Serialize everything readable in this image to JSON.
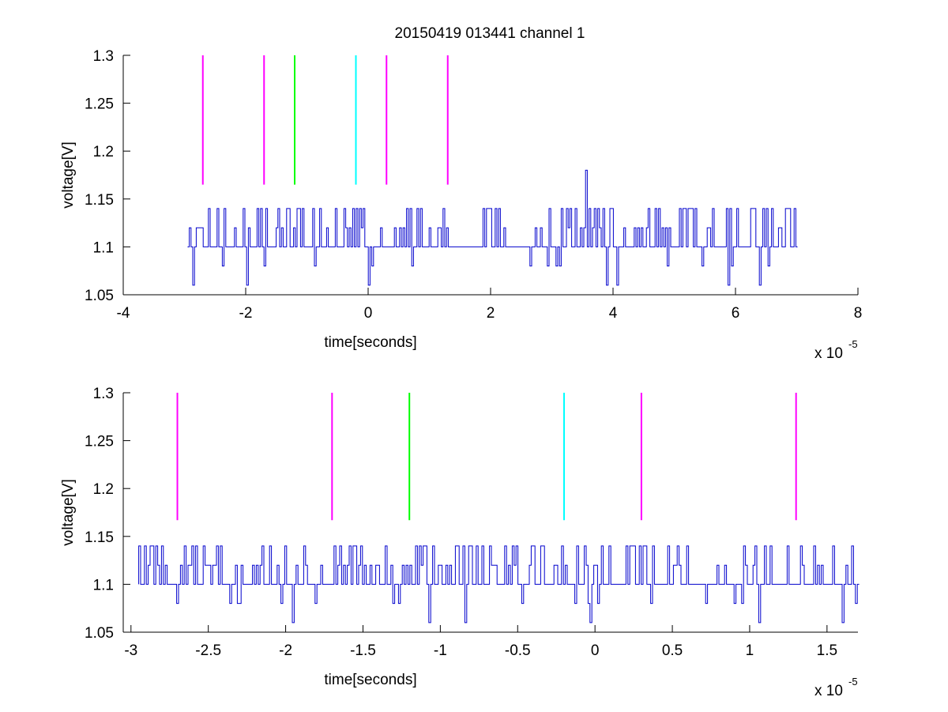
{
  "figure": {
    "title": "20150419 013441 channel 1"
  },
  "chart_data": [
    {
      "type": "line",
      "title": "20150419 013441 channel 1",
      "xlabel": "time[seconds]",
      "ylabel": "voltage[V]",
      "x_multiplier_label": "x 10",
      "x_multiplier_exp": "-5",
      "xlim": [
        -4,
        8
      ],
      "ylim": [
        1.05,
        1.3
      ],
      "xticks": [
        -4,
        -2,
        0,
        2,
        4,
        6,
        8
      ],
      "xtick_labels": [
        "-4",
        "-2",
        "0",
        "2",
        "4",
        "6",
        "8"
      ],
      "yticks": [
        1.05,
        1.1,
        1.15,
        1.2,
        1.25,
        1.3
      ],
      "ytick_labels": [
        "1.05",
        "1.1",
        "1.15",
        "1.2",
        "1.25",
        "1.3"
      ],
      "grid": false,
      "trace": {
        "color": "#0000cc",
        "x_start": -2.95,
        "x_end": 7.0,
        "baseline": 1.1,
        "levels": [
          1.06,
          1.08,
          1.1,
          1.12,
          1.14
        ],
        "spike": {
          "x": 3.55,
          "y": 1.18
        }
      },
      "markers": [
        {
          "x": -2.7,
          "color": "#ff00ff",
          "y_from": 1.165,
          "y_to": 1.3
        },
        {
          "x": -1.7,
          "color": "#ff00ff",
          "y_from": 1.165,
          "y_to": 1.3
        },
        {
          "x": -1.2,
          "color": "#00ff00",
          "y_from": 1.165,
          "y_to": 1.3
        },
        {
          "x": -0.2,
          "color": "#00ffff",
          "y_from": 1.165,
          "y_to": 1.3
        },
        {
          "x": 0.3,
          "color": "#ff00ff",
          "y_from": 1.165,
          "y_to": 1.3
        },
        {
          "x": 1.3,
          "color": "#ff00ff",
          "y_from": 1.165,
          "y_to": 1.3
        }
      ]
    },
    {
      "type": "line",
      "title": "",
      "xlabel": "time[seconds]",
      "ylabel": "voltage[V]",
      "x_multiplier_label": "x 10",
      "x_multiplier_exp": "-5",
      "xlim": [
        -3.05,
        1.7
      ],
      "ylim": [
        1.05,
        1.3
      ],
      "xticks": [
        -3,
        -2.5,
        -2,
        -1.5,
        -1,
        -0.5,
        0,
        0.5,
        1,
        1.5
      ],
      "xtick_labels": [
        "-3",
        "-2.5",
        "-2",
        "-1.5",
        "-1",
        "-0.5",
        "0",
        "0.5",
        "1",
        "1.5"
      ],
      "yticks": [
        1.05,
        1.1,
        1.15,
        1.2,
        1.25,
        1.3
      ],
      "ytick_labels": [
        "1.05",
        "1.1",
        "1.15",
        "1.2",
        "1.25",
        "1.3"
      ],
      "grid": false,
      "trace": {
        "color": "#0000cc",
        "x_start": -2.95,
        "x_end": 1.7,
        "baseline": 1.1,
        "levels": [
          1.06,
          1.08,
          1.1,
          1.12,
          1.14
        ]
      },
      "markers": [
        {
          "x": -2.7,
          "color": "#ff00ff",
          "y_from": 1.167,
          "y_to": 1.3
        },
        {
          "x": -1.7,
          "color": "#ff00ff",
          "y_from": 1.167,
          "y_to": 1.3
        },
        {
          "x": -1.2,
          "color": "#00ff00",
          "y_from": 1.167,
          "y_to": 1.3
        },
        {
          "x": -0.2,
          "color": "#00ffff",
          "y_from": 1.167,
          "y_to": 1.3
        },
        {
          "x": 0.3,
          "color": "#ff00ff",
          "y_from": 1.167,
          "y_to": 1.3
        },
        {
          "x": 1.3,
          "color": "#ff00ff",
          "y_from": 1.167,
          "y_to": 1.3
        }
      ]
    }
  ]
}
